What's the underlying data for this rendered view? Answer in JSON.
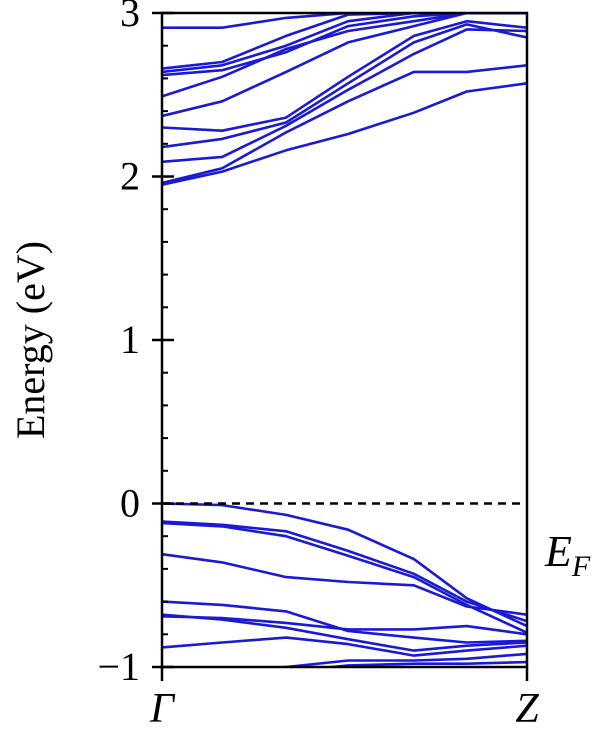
{
  "chart_data": {
    "type": "line",
    "title": "",
    "xlabel": "",
    "ylabel": "Energy (eV)",
    "ylim": [
      -1,
      3
    ],
    "x_ticks": [
      {
        "label": "Γ",
        "value": 0
      },
      {
        "label": "Z",
        "value": 1
      }
    ],
    "y_ticks": [
      {
        "label": "3",
        "value": 3
      },
      {
        "label": "2",
        "value": 2
      },
      {
        "label": "1",
        "value": 1
      },
      {
        "label": "0",
        "value": 0
      },
      {
        "label": "−1",
        "value": -1
      }
    ],
    "y_minor_step": 0.2,
    "fermi_level": {
      "label": "E",
      "subscript": "F",
      "value": 0
    },
    "line_color": "#1a1ad6",
    "x": [
      0,
      0.165,
      0.34,
      0.51,
      0.69,
      0.835,
      1
    ],
    "series": [
      {
        "values": [
          1.95,
          2.03,
          2.16,
          2.26,
          2.39,
          2.52,
          2.57
        ]
      },
      {
        "values": [
          1.96,
          2.05,
          2.27,
          2.46,
          2.64,
          2.64,
          2.68
        ]
      },
      {
        "values": [
          2.09,
          2.12,
          2.31,
          2.53,
          2.75,
          2.9,
          2.89
        ]
      },
      {
        "values": [
          2.18,
          2.23,
          2.33,
          2.57,
          2.82,
          2.93,
          2.85
        ]
      },
      {
        "values": [
          2.3,
          2.28,
          2.36,
          2.61,
          2.86,
          2.95,
          2.91
        ]
      },
      {
        "values": [
          2.37,
          2.46,
          2.64,
          2.82,
          2.92,
          3.0,
          3.0
        ]
      },
      {
        "values": [
          2.49,
          2.61,
          2.78,
          2.89,
          2.95,
          3.0,
          3.0
        ]
      },
      {
        "values": [
          2.62,
          2.65,
          2.76,
          2.92,
          2.98,
          3.0,
          3.0
        ]
      },
      {
        "values": [
          2.64,
          2.68,
          2.8,
          2.95,
          3.0,
          3.0,
          3.0
        ]
      },
      {
        "values": [
          2.66,
          2.7,
          2.86,
          2.99,
          3.0,
          3.0,
          3.0
        ]
      },
      {
        "values": [
          2.91,
          2.91,
          2.97,
          3.0,
          3.0,
          3.0,
          3.0
        ]
      },
      {
        "values": [
          0.0,
          -0.01,
          -0.07,
          -0.16,
          -0.34,
          -0.58,
          -0.75
        ]
      },
      {
        "values": [
          -0.11,
          -0.13,
          -0.17,
          -0.29,
          -0.43,
          -0.6,
          -0.72
        ]
      },
      {
        "values": [
          -0.12,
          -0.14,
          -0.2,
          -0.32,
          -0.45,
          -0.62,
          -0.79
        ]
      },
      {
        "values": [
          -0.31,
          -0.36,
          -0.45,
          -0.48,
          -0.5,
          -0.63,
          -0.68
        ]
      },
      {
        "values": [
          -0.6,
          -0.62,
          -0.66,
          -0.78,
          -0.82,
          -0.85,
          -0.84
        ]
      },
      {
        "values": [
          -0.69,
          -0.7,
          -0.73,
          -0.77,
          -0.77,
          -0.75,
          -0.8
        ]
      },
      {
        "values": [
          -0.68,
          -0.71,
          -0.76,
          -0.83,
          -0.9,
          -0.87,
          -0.85
        ]
      },
      {
        "values": [
          -0.88,
          -0.85,
          -0.82,
          -0.86,
          -0.93,
          -0.9,
          -0.87
        ]
      },
      {
        "values": [
          -1.03,
          -1.03,
          -1.0,
          -0.96,
          -0.96,
          -0.95,
          -0.92
        ]
      },
      {
        "values": [
          -1.05,
          -1.04,
          -1.03,
          -0.99,
          -0.98,
          -0.98,
          -0.97
        ]
      }
    ]
  }
}
